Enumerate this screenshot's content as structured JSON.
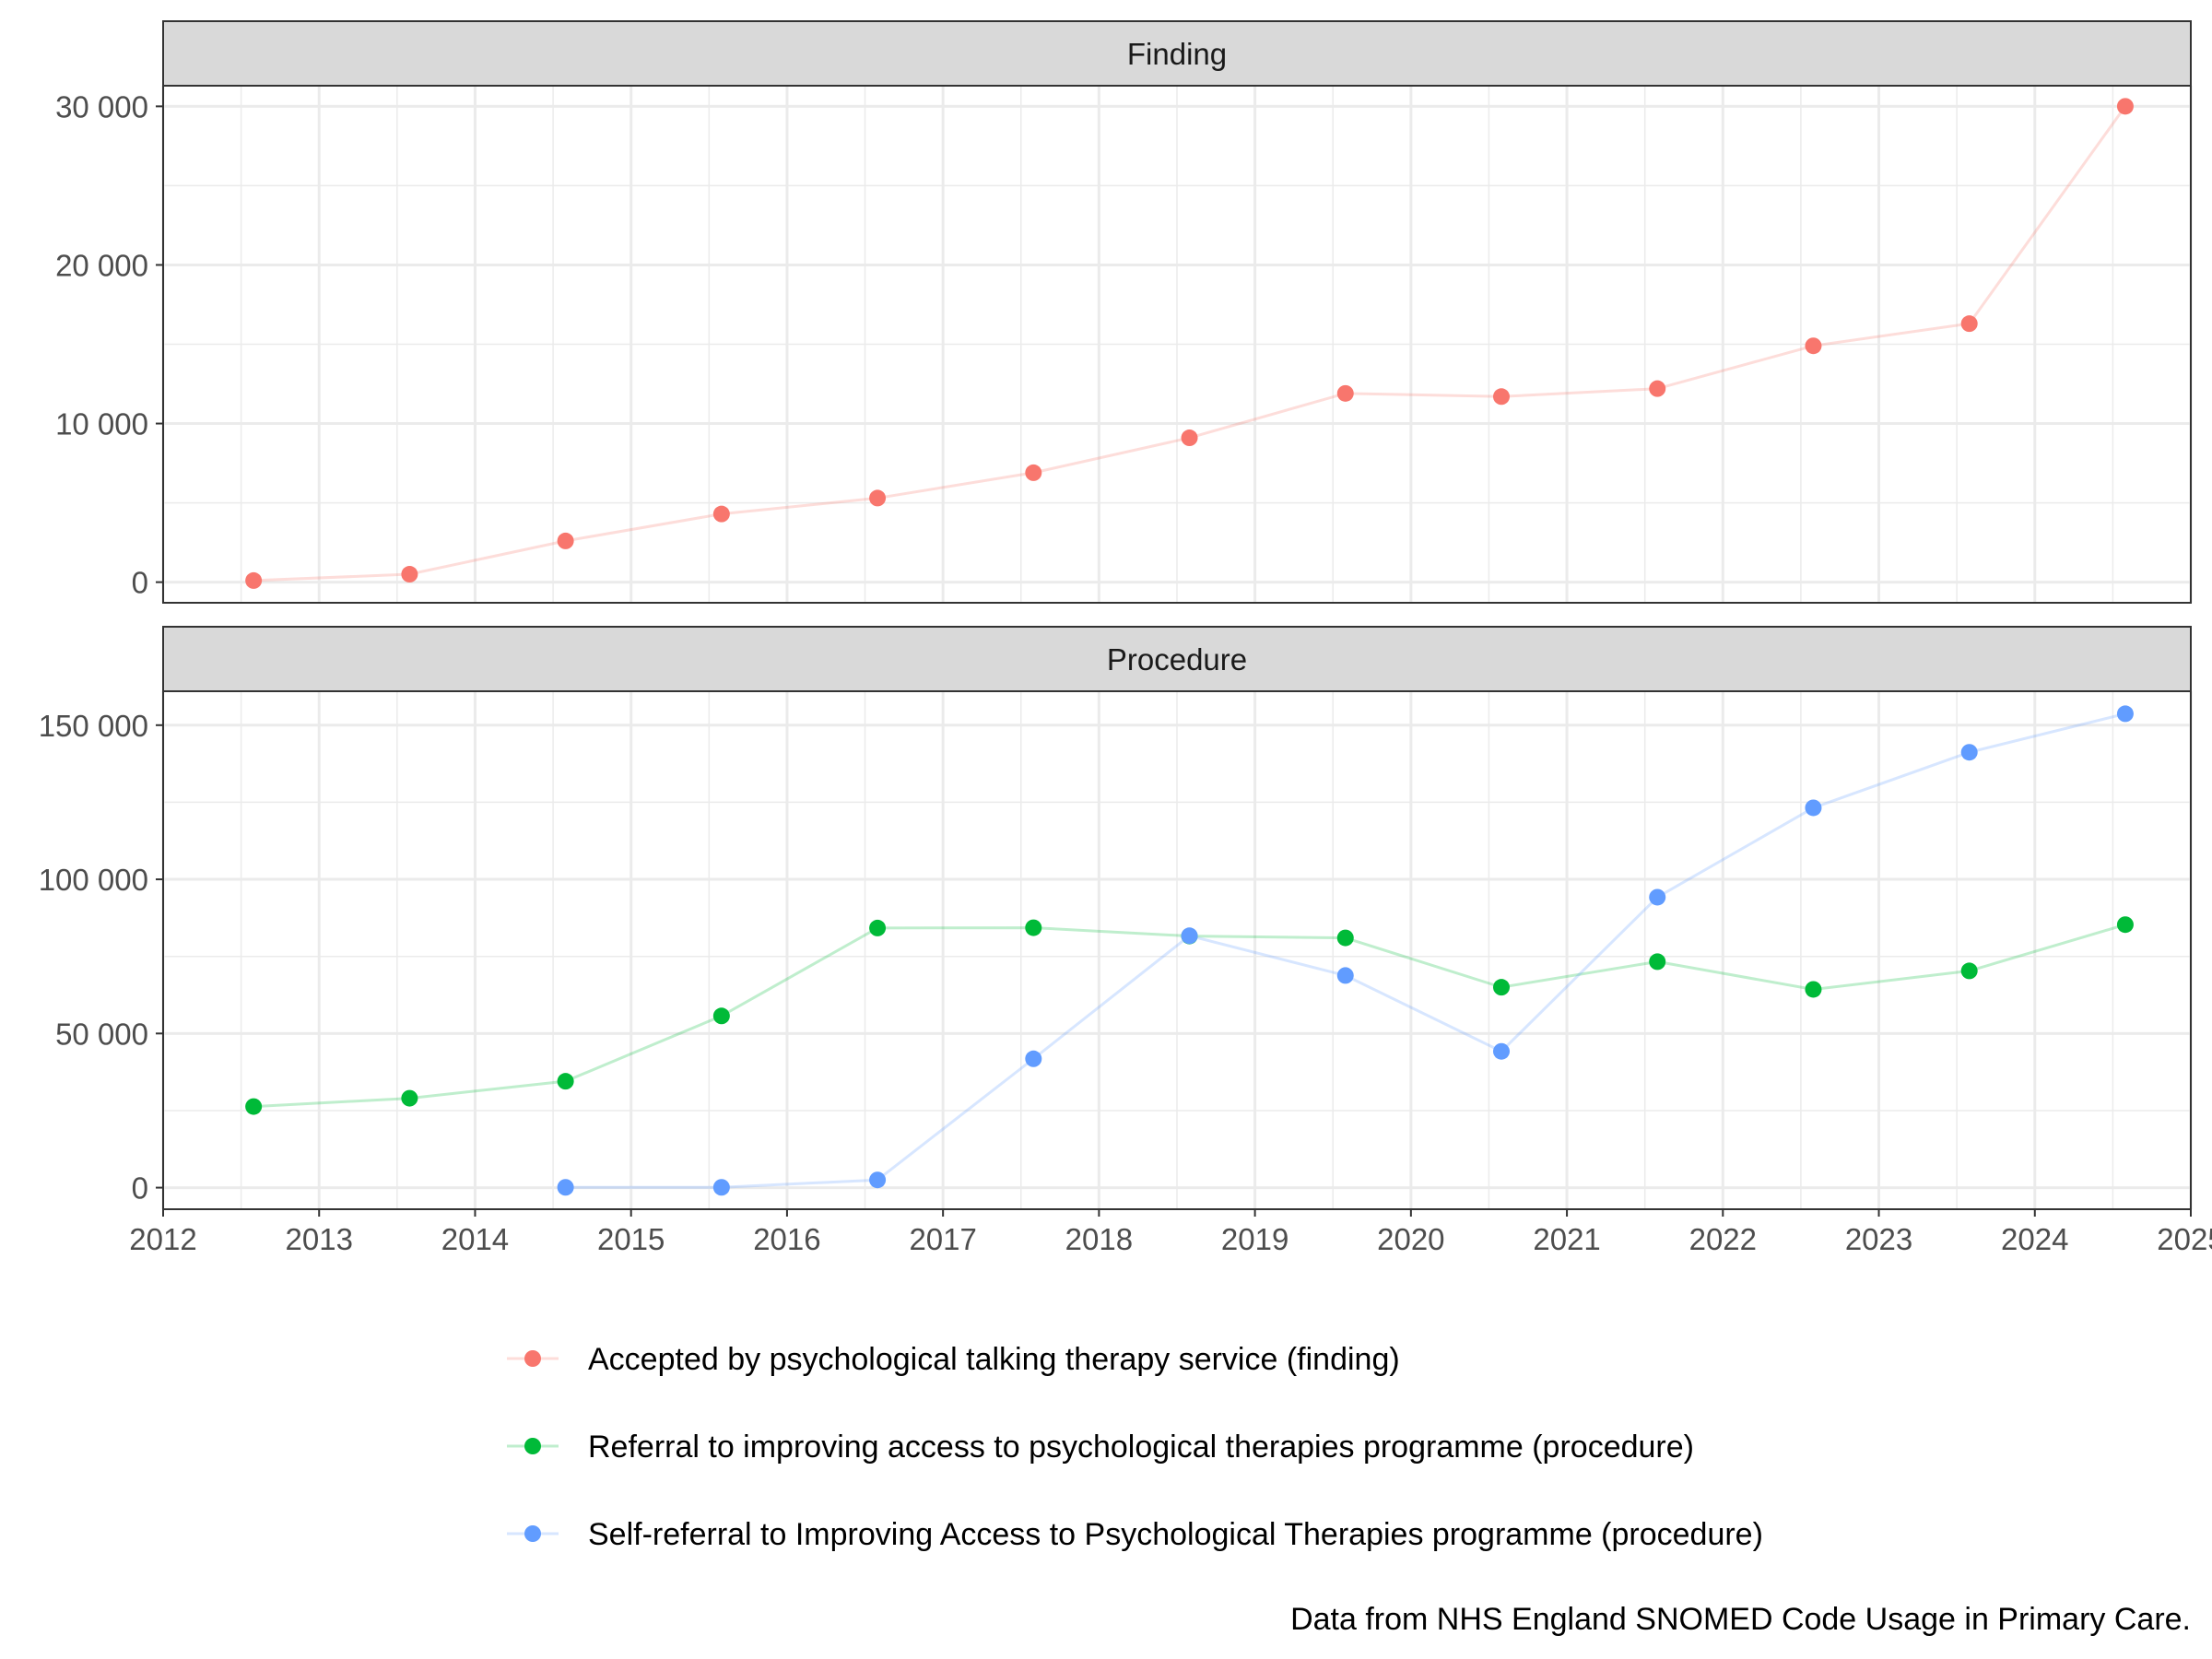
{
  "chart_data": {
    "type": "line",
    "facet_layout": "vertical",
    "x_axis": {
      "range": [
        2012,
        2025
      ],
      "tick_labels": [
        "2012",
        "2013",
        "2014",
        "2015",
        "2016",
        "2017",
        "2018",
        "2019",
        "2020",
        "2021",
        "2022",
        "2023",
        "2024",
        "2025"
      ]
    },
    "x": [
      2012.58,
      2013.58,
      2014.58,
      2015.58,
      2016.58,
      2017.58,
      2018.58,
      2019.58,
      2020.58,
      2021.58,
      2022.58,
      2023.58,
      2024.58
    ],
    "panels": [
      {
        "strip_label": "Finding",
        "ylim": [
          -1300,
          31300
        ],
        "y_ticks": [
          0,
          10000,
          20000,
          30000
        ],
        "y_tick_labels": [
          "0",
          "10 000",
          "20 000",
          "30 000"
        ],
        "series_keys": [
          "accepted"
        ]
      },
      {
        "strip_label": "Procedure",
        "ylim": [
          -7000,
          161000
        ],
        "y_ticks": [
          0,
          50000,
          100000,
          150000
        ],
        "y_tick_labels": [
          "0",
          "50 000",
          "100 000",
          "150 000"
        ],
        "series_keys": [
          "referral",
          "selfref"
        ]
      }
    ],
    "series": [
      {
        "key": "accepted",
        "name": "Accepted by psychological talking therapy service (finding)",
        "color": "#F8766D",
        "values": [
          100,
          500,
          2600,
          4300,
          5300,
          6900,
          9100,
          11900,
          11700,
          12200,
          14900,
          16300,
          30000
        ]
      },
      {
        "key": "referral",
        "name": "Referral to improving access to psychological therapies programme (procedure)",
        "color": "#00BA38",
        "values": [
          26300,
          29000,
          34500,
          55700,
          84200,
          84300,
          81600,
          81000,
          65000,
          73300,
          64300,
          70300,
          85300
        ]
      },
      {
        "key": "selfref",
        "name": "Self-referral to Improving Access to Psychological Therapies programme (procedure)",
        "color": "#619CFF",
        "values": [
          null,
          null,
          100,
          100,
          2500,
          41800,
          81700,
          68800,
          44200,
          94200,
          123200,
          141200,
          153700
        ]
      }
    ],
    "grid": true,
    "legend_position": "bottom",
    "caption": "Data from NHS England SNOMED Code Usage in Primary Care."
  }
}
